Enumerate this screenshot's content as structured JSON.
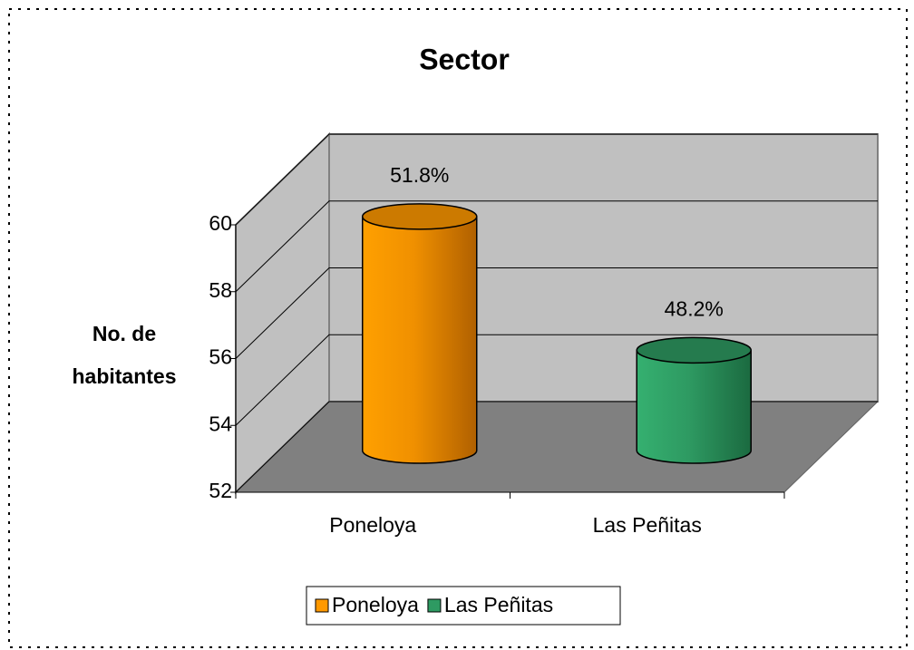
{
  "chart_data": {
    "type": "bar3d",
    "title": "Sector",
    "y_label": "No. de habitantes",
    "categories": [
      "Poneloya",
      "Las Peñitas"
    ],
    "series": [
      {
        "name": "Poneloya",
        "color": "#ff9900",
        "values": [
          59,
          null
        ]
      },
      {
        "name": "Las Peñitas",
        "color": "#2e9a62",
        "values": [
          null,
          55
        ]
      }
    ],
    "annotations": [
      "51.8%",
      "48.2%"
    ],
    "ylim": [
      52,
      60
    ],
    "yticks": [
      52,
      54,
      56,
      58,
      60
    ],
    "grid": true,
    "legend": "bottom"
  }
}
